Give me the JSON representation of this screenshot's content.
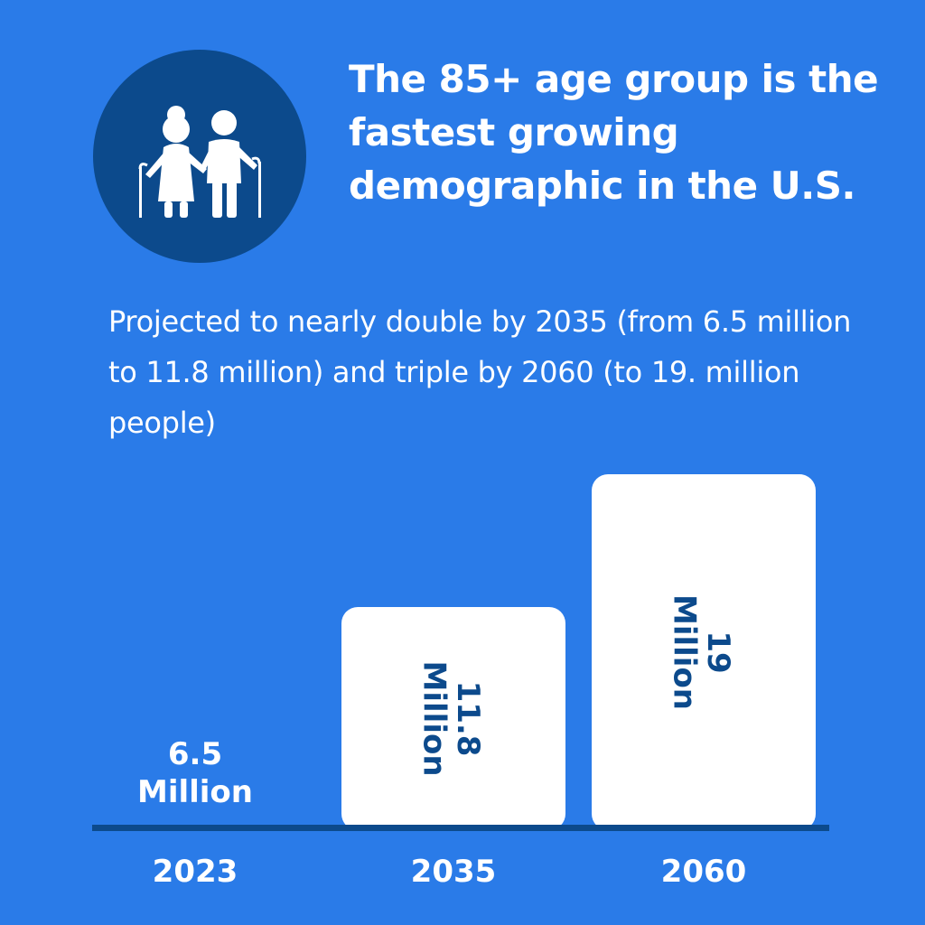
{
  "colors": {
    "background": "#2a7be8",
    "icon_circle": "#0c4a8c",
    "bar_fill": "#ffffff",
    "bar_label": "#0c4a8c",
    "baseline": "#0c4a8c",
    "text": "#ffffff"
  },
  "icon": "elderly-couple-icon",
  "headline": "The 85+ age group is the fastest growing demographic in the U.S.",
  "subtitle": "Projected to nearly double by 2035 (from 6.5 million to 11.8 million) and triple by 2060 (to 19. million people)",
  "chart_data": {
    "type": "bar",
    "categories": [
      "2023",
      "2035",
      "2060"
    ],
    "values": [
      6.5,
      11.8,
      19
    ],
    "data_labels": [
      [
        "6.5",
        "Million"
      ],
      [
        "11.8",
        "Million"
      ],
      [
        "19",
        "Million"
      ]
    ],
    "ylim": [
      0,
      19
    ],
    "grid": false,
    "legend": "none",
    "label_orientation": [
      "horizontal-outside",
      "vertical-inside",
      "vertical-inside"
    ]
  }
}
